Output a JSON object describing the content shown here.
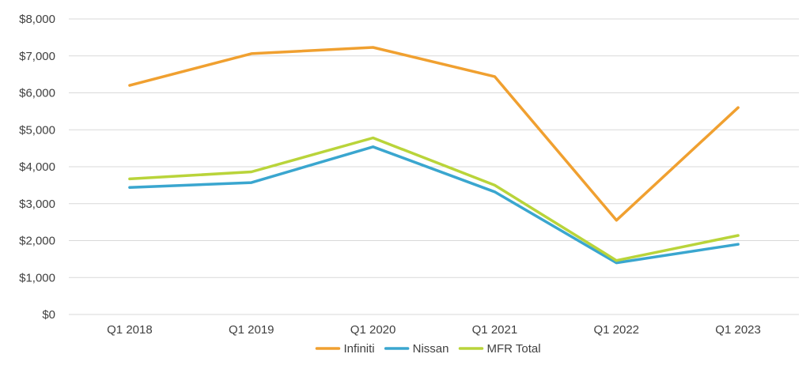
{
  "chart_data": {
    "type": "line",
    "title": "",
    "xlabel": "",
    "ylabel": "",
    "categories": [
      "Q1 2018",
      "Q1 2019",
      "Q1 2020",
      "Q1 2021",
      "Q1 2022",
      "Q1 2023"
    ],
    "ylim": [
      0,
      8000
    ],
    "yticks": [
      0,
      1000,
      2000,
      3000,
      4000,
      5000,
      6000,
      7000,
      8000
    ],
    "ytick_labels": [
      "$0",
      "$1,000",
      "$2,000",
      "$3,000",
      "$4,000",
      "$5,000",
      "$6,000",
      "$7,000",
      "$8,000"
    ],
    "grid": true,
    "legend_position": "bottom",
    "series": [
      {
        "name": "Infiniti",
        "color": "#f0a030",
        "values": [
          6200,
          7060,
          7230,
          6440,
          2550,
          5600
        ]
      },
      {
        "name": "Nissan",
        "color": "#3aa6cf",
        "values": [
          3440,
          3570,
          4540,
          3320,
          1400,
          1900
        ]
      },
      {
        "name": "MFR Total",
        "color": "#b9d43a",
        "values": [
          3670,
          3860,
          4780,
          3500,
          1460,
          2140
        ]
      }
    ]
  }
}
